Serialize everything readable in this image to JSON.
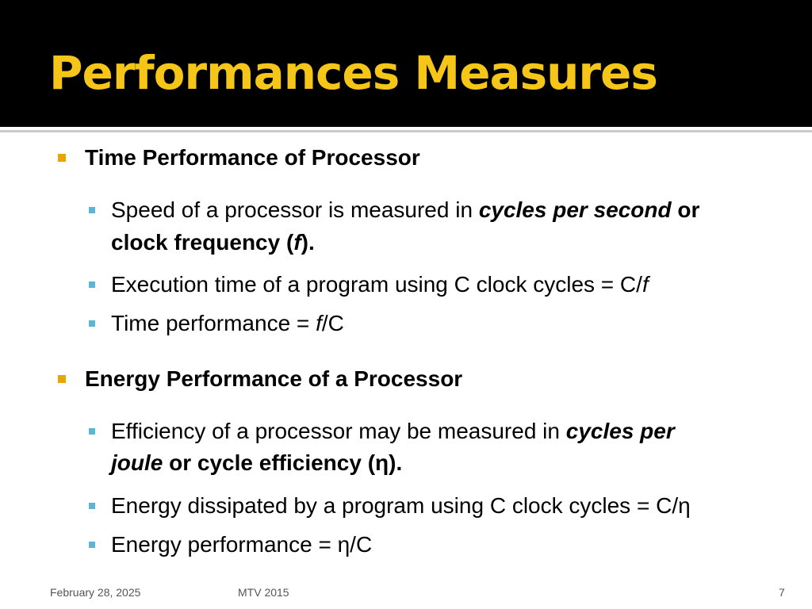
{
  "slide": {
    "title": "Performances Measures",
    "sections": [
      {
        "heading": "Time Performance of Processor",
        "items": [
          {
            "line1_a": "Speed of a processor is measured in ",
            "line1_b": "cycles per second",
            "line1_c": " or",
            "line2_a": "clock frequency (",
            "line2_b": "f",
            "line2_c": ")."
          },
          {
            "text": "Execution time of a program using C clock cycles = C/",
            "italic": "f"
          },
          {
            "text_a": "Time performance = ",
            "italic": "f",
            "text_b": "/C"
          }
        ]
      },
      {
        "heading": "Energy Performance of a Processor",
        "items": [
          {
            "line1_a": "Efficiency of a processor may be measured in ",
            "line1_b": "cycles per",
            "line2_a": "joule",
            "line2_b": " or cycle efficiency (η)."
          },
          {
            "text": "Energy dissipated by a program using C clock cycles = C/η"
          },
          {
            "text": "Energy performance = η/C"
          }
        ]
      }
    ]
  },
  "footer": {
    "date": "February 28, 2025",
    "center": "MTV 2015",
    "page_number": "7"
  },
  "colors": {
    "title_bar": "#000000",
    "title_text": "#f5c518",
    "bullet_level1": "#e8a700",
    "bullet_level2": "#5bb6d6"
  }
}
